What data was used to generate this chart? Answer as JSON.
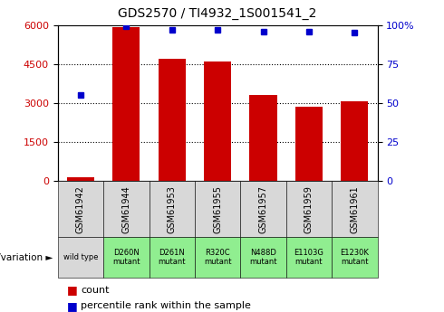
{
  "title": "GDS2570 / TI4932_1S001541_2",
  "samples": [
    "GSM61942",
    "GSM61944",
    "GSM61953",
    "GSM61955",
    "GSM61957",
    "GSM61959",
    "GSM61961"
  ],
  "counts": [
    150,
    5900,
    4700,
    4600,
    3300,
    2850,
    3050
  ],
  "percentiles": [
    55,
    99,
    97,
    97,
    96,
    96,
    95
  ],
  "genotypes": [
    "wild type",
    "D260N\nmutant",
    "D261N\nmutant",
    "R320C\nmutant",
    "N488D\nmutant",
    "E1103G\nmutant",
    "E1230K\nmutant"
  ],
  "gsm_bg": "#d8d8d8",
  "genotype_bg_first": "#d8d8d8",
  "genotype_bg_rest": "#90ee90",
  "bar_color": "#cc0000",
  "marker_color": "#0000cc",
  "left_ylim": [
    0,
    6000
  ],
  "right_ylim": [
    0,
    100
  ],
  "left_yticks": [
    0,
    1500,
    3000,
    4500,
    6000
  ],
  "right_yticks": [
    0,
    25,
    50,
    75,
    100
  ],
  "right_yticklabels": [
    "0",
    "25",
    "50",
    "75",
    "100%"
  ],
  "grid_values": [
    1500,
    3000,
    4500
  ],
  "legend_count_label": "count",
  "legend_pct_label": "percentile rank within the sample",
  "genotype_label": "genotype/variation"
}
